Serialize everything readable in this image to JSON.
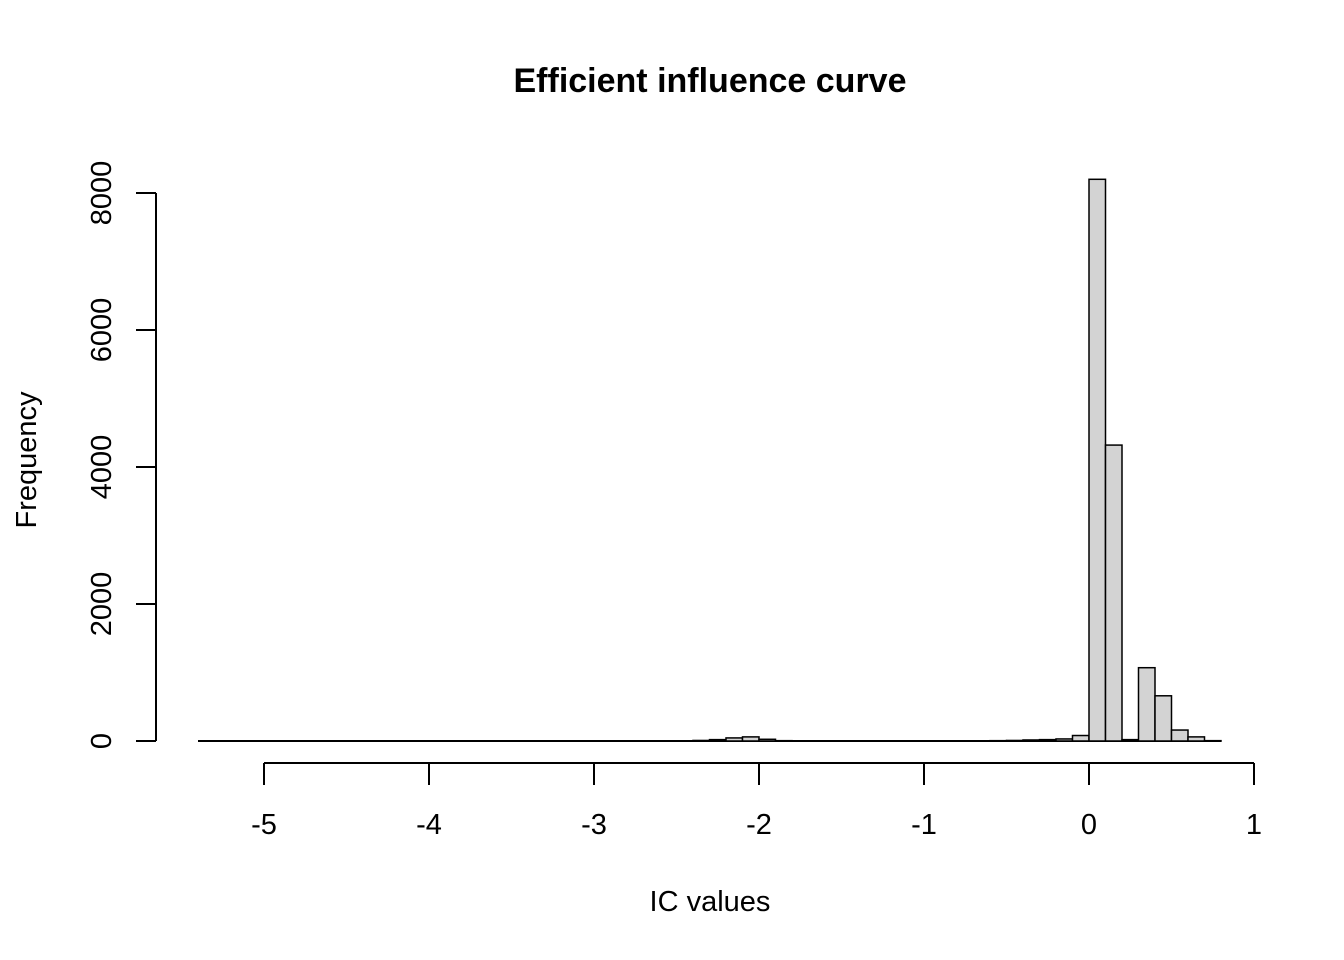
{
  "chart_data": {
    "type": "bar",
    "title": "Efficient influence curve",
    "xlabel": "IC values",
    "ylabel": "Frequency",
    "bin_width": 0.1,
    "xlim": [
      -5.4,
      0.8
    ],
    "ylim": [
      0,
      8200
    ],
    "x_ticks": [
      -5,
      -4,
      -3,
      -2,
      -1,
      0,
      1
    ],
    "x_tick_labels": [
      "-5",
      "-4",
      "-3",
      "-2",
      "-1",
      "0",
      "1"
    ],
    "y_ticks": [
      0,
      2000,
      4000,
      6000,
      8000
    ],
    "y_tick_labels": [
      "0",
      "2000",
      "4000",
      "6000",
      "8000"
    ],
    "bar_fill": "#d3d3d3",
    "bar_edge": "#000000",
    "bins": [
      {
        "start": -2.4,
        "end": -2.3,
        "count": 8
      },
      {
        "start": -2.3,
        "end": -2.2,
        "count": 20
      },
      {
        "start": -2.2,
        "end": -2.1,
        "count": 45
      },
      {
        "start": -2.1,
        "end": -2.0,
        "count": 60
      },
      {
        "start": -2.0,
        "end": -1.9,
        "count": 25
      },
      {
        "start": -1.9,
        "end": -1.8,
        "count": 5
      },
      {
        "start": -0.6,
        "end": -0.5,
        "count": 5
      },
      {
        "start": -0.5,
        "end": -0.4,
        "count": 8
      },
      {
        "start": -0.4,
        "end": -0.3,
        "count": 15
      },
      {
        "start": -0.3,
        "end": -0.2,
        "count": 20
      },
      {
        "start": -0.2,
        "end": -0.1,
        "count": 30
      },
      {
        "start": -0.1,
        "end": 0.0,
        "count": 80
      },
      {
        "start": 0.0,
        "end": 0.1,
        "count": 8200
      },
      {
        "start": 0.1,
        "end": 0.2,
        "count": 4320
      },
      {
        "start": 0.2,
        "end": 0.3,
        "count": 20
      },
      {
        "start": 0.3,
        "end": 0.4,
        "count": 1070
      },
      {
        "start": 0.4,
        "end": 0.5,
        "count": 660
      },
      {
        "start": 0.5,
        "end": 0.6,
        "count": 160
      },
      {
        "start": 0.6,
        "end": 0.7,
        "count": 60
      },
      {
        "start": 0.7,
        "end": 0.8,
        "count": 5
      }
    ]
  }
}
